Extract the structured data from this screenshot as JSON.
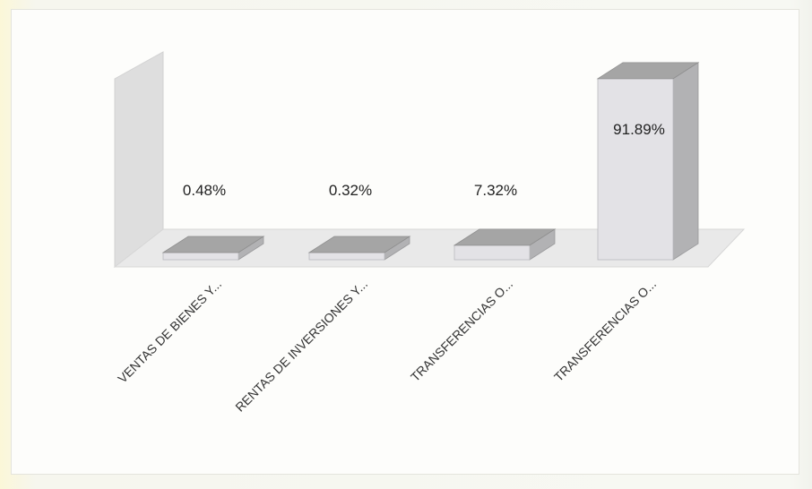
{
  "chart_data": {
    "type": "bar",
    "style": "3d-column",
    "categories": [
      "VENTAS DE BIENES Y...",
      "RENTAS DE INVERSIONES Y...",
      "TRANSFERENCIAS O...",
      "TRANSFERENCIAS O..."
    ],
    "values": [
      0.48,
      0.32,
      7.32,
      91.89
    ],
    "data_labels": [
      "0.48%",
      "0.32%",
      "7.32%",
      "91.89%"
    ],
    "ylim": [
      0,
      100
    ],
    "grid": false,
    "legend": "none",
    "colors": {
      "bar_front": "#e3e2e6",
      "bar_top": "#a5a5a5",
      "bar_side": "#b2b2b4",
      "wall": "#dcdcdc",
      "floor": "#e7e7e7"
    }
  }
}
